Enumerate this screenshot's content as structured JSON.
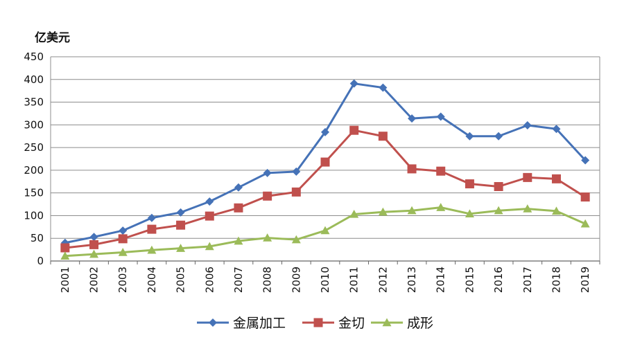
{
  "chart_data": {
    "type": "line",
    "ylabel": "亿美元",
    "xlabel": "",
    "ylim": [
      0,
      450
    ],
    "yticks": [
      0,
      50,
      100,
      150,
      200,
      250,
      300,
      350,
      400,
      450
    ],
    "grid": true,
    "legend_position": "bottom",
    "categories": [
      "2001",
      "2002",
      "2003",
      "2004",
      "2005",
      "2006",
      "2007",
      "2008",
      "2009",
      "2010",
      "2011",
      "2012",
      "2013",
      "2014",
      "2015",
      "2016",
      "2017",
      "2018",
      "2019"
    ],
    "series": [
      {
        "name": "金属加工",
        "color": "#4572B7",
        "marker": "diamond",
        "values": [
          40,
          53,
          67,
          95,
          107,
          131,
          162,
          194,
          197,
          284,
          391,
          382,
          314,
          318,
          275,
          275,
          299,
          291,
          222
        ]
      },
      {
        "name": "金切",
        "color": "#C0504D",
        "marker": "square",
        "values": [
          29,
          36,
          49,
          70,
          79,
          99,
          117,
          143,
          152,
          218,
          288,
          275,
          203,
          198,
          170,
          164,
          184,
          181,
          141
        ]
      },
      {
        "name": "成形",
        "color": "#9BBB59",
        "marker": "triangle",
        "values": [
          11,
          15,
          19,
          24,
          28,
          32,
          44,
          51,
          47,
          67,
          103,
          108,
          111,
          118,
          104,
          111,
          115,
          110,
          82
        ]
      }
    ]
  }
}
